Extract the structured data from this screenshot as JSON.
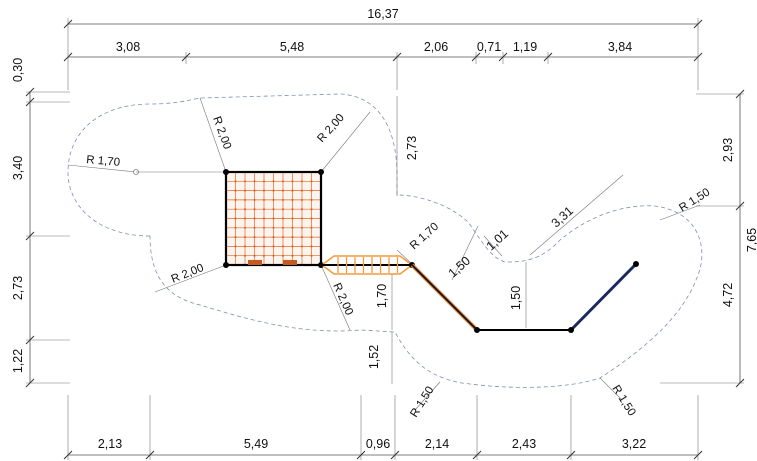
{
  "dimensions": {
    "overall_top": "16,37",
    "top": [
      "3,08",
      "5,48",
      "2,06",
      "0,71",
      "1,19",
      "3,84"
    ],
    "bottom": [
      "2,13",
      "5,49",
      "0,96",
      "2,14",
      "2,43",
      "3,22"
    ],
    "left": [
      "0,30",
      "3,40",
      "2,73",
      "1,22"
    ],
    "right": [
      "2,93",
      "7,65",
      "4,72"
    ],
    "inner": {
      "d_273": "2,73",
      "d_331": "3,31",
      "d_101": "1,01",
      "d_150a": "1,50",
      "d_150b": "1,50",
      "d_170": "1,70",
      "d_152": "1,52"
    }
  },
  "radii": {
    "r170_left": "R 1,70",
    "r200_tl": "R 2,00",
    "r200_tr": "R 2,00",
    "r200_bl": "R 2,00",
    "r200_br": "R 2,00",
    "r170_mid": "R 1,70",
    "r150_right": "R 1,50",
    "r150_bl": "R 1,50",
    "r150_br": "R 1,50"
  },
  "colors": {
    "net": "#e0682a",
    "bridge": "#f39a3a",
    "structure": "#000000",
    "ramp": "#1a2a5e",
    "zone": "#7f8fb0"
  }
}
